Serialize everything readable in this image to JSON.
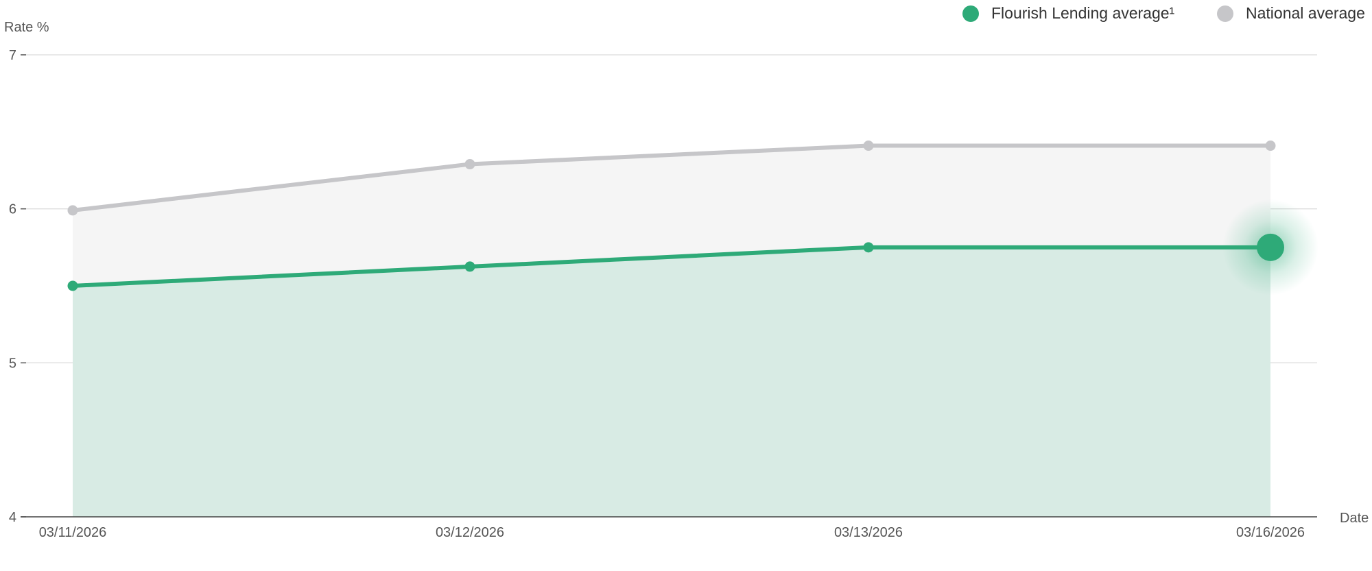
{
  "chart_data": {
    "type": "area",
    "ylabel": "Rate %",
    "xlabel": "Date",
    "categories": [
      "03/11/2026",
      "03/12/2026",
      "03/13/2026",
      "03/16/2026"
    ],
    "yticks": [
      "4",
      "5",
      "6",
      "7"
    ],
    "ylim": [
      4,
      7
    ],
    "grid": true,
    "legend_position": "top-right",
    "series": [
      {
        "name": "Flourish Lending average",
        "legend_label": "Flourish Lending average¹",
        "values": [
          5.5,
          5.625,
          5.75,
          5.75
        ],
        "color": "#2eaa78",
        "fill": "#d8ebe4"
      },
      {
        "name": "National average",
        "legend_label": "National average",
        "values": [
          5.99,
          6.29,
          6.41,
          6.41
        ],
        "color": "#c6c6c9",
        "fill": "#f5f5f5"
      }
    ],
    "highlight": {
      "series": 0,
      "index": 3
    }
  }
}
